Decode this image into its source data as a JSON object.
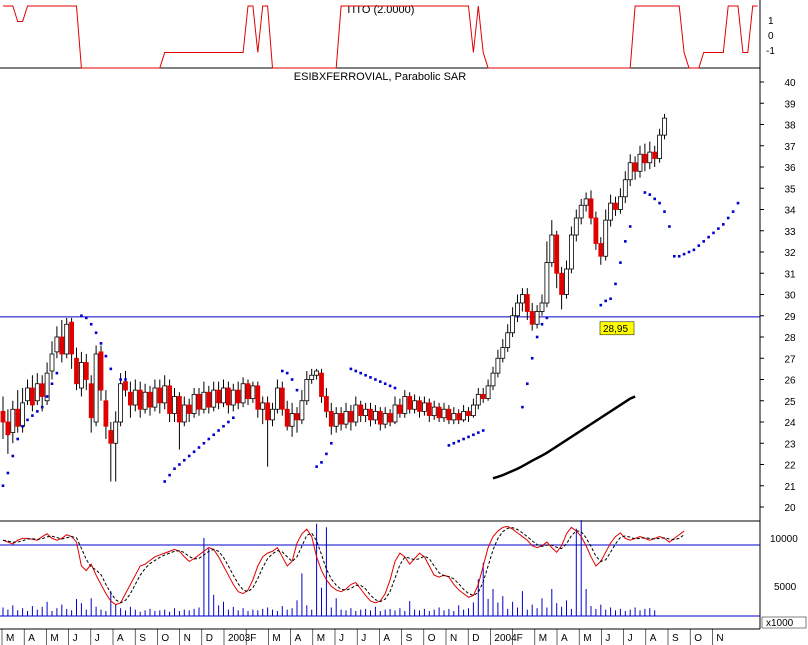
{
  "indicator_panel": {
    "title": "TITO (2.0000)",
    "y_ticks": [
      "1",
      "0",
      "-1"
    ]
  },
  "main_panel": {
    "title": "ESIBXFERROVIAL, Parabolic SAR",
    "y_ticks": [
      "40",
      "39",
      "38",
      "37",
      "36",
      "35",
      "34",
      "33",
      "32",
      "31",
      "30",
      "29",
      "28",
      "27",
      "26",
      "25",
      "24",
      "23",
      "22",
      "21",
      "20"
    ]
  },
  "volume_panel": {
    "y_ticks": [
      "10000",
      "5000"
    ],
    "unit": "x1000"
  },
  "x_axis": {
    "labels": [
      "M",
      "A",
      "M",
      "J",
      "J",
      "A",
      "S",
      "O",
      "N",
      "D",
      "2003",
      "F",
      "M",
      "A",
      "M",
      "J",
      "J",
      "A",
      "S",
      "O",
      "N",
      "D",
      "2004",
      "F",
      "M",
      "A",
      "M",
      "J",
      "J",
      "A",
      "S",
      "O",
      "N"
    ]
  },
  "colors": {
    "up": "#ffffff",
    "down": "#e00000",
    "outline": "#000000",
    "sar": "#0000cc",
    "tito": "#e00000",
    "hline": "#0000cc",
    "ma": "#000000",
    "label_bg": "#ffff00"
  },
  "chart_data": {
    "type": "candlestick",
    "title": "ESIBXFERROVIAL, Parabolic SAR",
    "ylim": [
      20,
      40
    ],
    "resistance": {
      "value": 28.95,
      "label": "28,95"
    },
    "sar_segments": [
      {
        "start": 0,
        "values": [
          21.0,
          21.6,
          22.4,
          23.2,
          23.8,
          24.1,
          24.3,
          24.5,
          24.7,
          25.2,
          25.8,
          26.3
        ]
      },
      {
        "start": 16,
        "values": [
          29.0,
          28.9,
          28.6,
          28.2,
          27.7,
          27.1,
          26.5
        ]
      },
      {
        "start": 24,
        "values": [
          26.0,
          26.0
        ]
      },
      {
        "start": 33,
        "values": [
          21.2,
          21.5,
          21.8,
          22.0,
          22.2,
          22.4,
          22.6,
          22.8,
          23.0,
          23.2,
          23.4,
          23.6,
          23.8,
          24.0,
          24.2
        ]
      },
      {
        "start": 57,
        "values": [
          26.4,
          26.3,
          26.0,
          25.5
        ]
      },
      {
        "start": 64,
        "values": [
          21.9,
          22.1,
          22.5,
          23.0
        ]
      },
      {
        "start": 71,
        "values": [
          26.5,
          26.4,
          26.3,
          26.2,
          26.1,
          26.0,
          25.9,
          25.8,
          25.7,
          25.6
        ]
      },
      {
        "start": 91,
        "values": [
          22.9,
          23.0,
          23.1,
          23.2,
          23.3,
          23.4,
          23.5,
          23.6
        ]
      },
      {
        "start": 106,
        "values": [
          24.7,
          25.8,
          27.0,
          28.0,
          28.6,
          28.9
        ]
      },
      {
        "start": 122,
        "values": [
          29.5,
          29.7,
          29.8,
          30.5,
          31.5,
          32.5,
          33.2
        ]
      },
      {
        "start": 131,
        "values": [
          34.8,
          34.7,
          34.5,
          34.3,
          33.9,
          33.2
        ]
      },
      {
        "start": 137,
        "values": [
          31.8,
          31.8,
          31.9,
          32.0,
          32.1,
          32.3,
          32.5,
          32.7,
          32.9,
          33.1,
          33.3,
          33.6,
          33.9,
          34.3
        ]
      }
    ],
    "ma_line": {
      "start": 100,
      "values": [
        21.35,
        21.42,
        21.5,
        21.6,
        21.7,
        21.8,
        21.92,
        22.05,
        22.18,
        22.3,
        22.42,
        22.55,
        22.7,
        22.85,
        23.0,
        23.15,
        23.3,
        23.45,
        23.6,
        23.75,
        23.9,
        24.05,
        24.2,
        24.35,
        24.5,
        24.65,
        24.8,
        24.95,
        25.1,
        25.2
      ]
    },
    "tito": [
      2,
      2,
      2,
      1,
      1,
      2,
      2,
      2,
      2,
      2,
      2,
      2,
      2,
      2,
      2,
      2,
      -2,
      -2,
      -2,
      -2,
      -2,
      -2,
      -2,
      -2,
      -2,
      -2,
      -2,
      -2,
      -2,
      -2,
      -2,
      -2,
      -2,
      -1,
      -1,
      -1,
      -1,
      -1,
      -1,
      -1,
      -1,
      -1,
      -1,
      -1,
      -1,
      -1,
      -1,
      -1,
      -1,
      -1,
      2,
      2,
      -1,
      2,
      2,
      -2,
      -2,
      -2,
      -2,
      -2,
      -2,
      -2,
      -2,
      -2,
      -2,
      -2,
      -2,
      -2,
      -2,
      2,
      2,
      2,
      2,
      2,
      2,
      2,
      2,
      2,
      2,
      2,
      2,
      2,
      2,
      2,
      2,
      2,
      2,
      2,
      2,
      2,
      2,
      2,
      2,
      2,
      2,
      2,
      -1,
      2,
      -1,
      -2,
      -2,
      -2,
      -2,
      -2,
      -2,
      -2,
      -2,
      -2,
      -2,
      -2,
      -2,
      -2,
      -2,
      -2,
      -2,
      -2,
      -2,
      -2,
      -2,
      -2,
      -2,
      -2,
      -2,
      -2,
      -2,
      -2,
      -2,
      -2,
      -2,
      2,
      2,
      2,
      2,
      2,
      2,
      2,
      2,
      2,
      2,
      -1,
      -2,
      -2,
      -2,
      -1,
      -1,
      -1,
      -1,
      -1,
      2,
      2,
      2,
      -1,
      -1,
      2,
      2
    ],
    "oscillator": [
      0.78,
      0.76,
      0.74,
      0.78,
      0.8,
      0.8,
      0.79,
      0.78,
      0.82,
      0.85,
      0.8,
      0.78,
      0.8,
      0.84,
      0.82,
      0.76,
      0.5,
      0.45,
      0.52,
      0.4,
      0.3,
      0.2,
      0.12,
      0.08,
      0.1,
      0.2,
      0.3,
      0.4,
      0.5,
      0.52,
      0.56,
      0.6,
      0.62,
      0.64,
      0.66,
      0.68,
      0.66,
      0.6,
      0.55,
      0.58,
      0.62,
      0.66,
      0.7,
      0.68,
      0.6,
      0.5,
      0.4,
      0.3,
      0.22,
      0.2,
      0.24,
      0.35,
      0.5,
      0.6,
      0.64,
      0.66,
      0.7,
      0.6,
      0.5,
      0.55,
      0.75,
      0.85,
      0.9,
      0.82,
      0.6,
      0.45,
      0.35,
      0.28,
      0.24,
      0.22,
      0.25,
      0.3,
      0.32,
      0.25,
      0.18,
      0.12,
      0.1,
      0.12,
      0.2,
      0.35,
      0.55,
      0.64,
      0.6,
      0.52,
      0.58,
      0.64,
      0.6,
      0.5,
      0.4,
      0.38,
      0.4,
      0.38,
      0.3,
      0.24,
      0.2,
      0.16,
      0.18,
      0.3,
      0.5,
      0.7,
      0.82,
      0.88,
      0.92,
      0.93,
      0.9,
      0.86,
      0.82,
      0.78,
      0.72,
      0.7,
      0.72,
      0.76,
      0.7,
      0.65,
      0.72,
      0.85,
      0.92,
      0.88,
      0.82,
      0.72,
      0.6,
      0.5,
      0.55,
      0.65,
      0.75,
      0.82,
      0.86,
      0.8,
      0.78,
      0.8,
      0.82,
      0.8,
      0.78,
      0.8,
      0.82,
      0.8,
      0.76,
      0.8,
      0.84,
      0.88
    ],
    "volume": [
      1200,
      900,
      1500,
      800,
      1100,
      700,
      1400,
      900,
      1300,
      2000,
      700,
      1100,
      1600,
      1000,
      800,
      2400,
      1800,
      900,
      2500,
      1300,
      900,
      700,
      3500,
      1600,
      1100,
      800,
      1300,
      900,
      600,
      800,
      1000,
      700,
      800,
      900,
      600,
      1100,
      700,
      900,
      800,
      1000,
      1200,
      11000,
      9500,
      3000,
      1500,
      2000,
      900,
      1300,
      800,
      1100,
      700,
      900,
      800,
      1000,
      1200,
      900,
      700,
      1400,
      900,
      1100,
      2200,
      6000,
      1500,
      900,
      13000,
      4000,
      12500,
      1200,
      2500,
      900,
      800,
      1100,
      700,
      900,
      1000,
      800,
      1300,
      700,
      900,
      1000,
      800,
      1100,
      700,
      2100,
      900,
      800,
      1000,
      700,
      900,
      1200,
      800,
      1000,
      700,
      1500,
      900,
      1100,
      1900,
      5200,
      7500,
      2400,
      3800,
      1900,
      2800,
      1000,
      2000,
      1200,
      3500,
      900,
      1600,
      1100,
      2500,
      1200,
      3800,
      1800,
      1300,
      2200,
      1000,
      12300,
      13500,
      3800,
      1400,
      1000,
      1600,
      900,
      1200,
      800,
      1000,
      700,
      900,
      1200,
      800,
      1000,
      1100,
      800
    ],
    "candles": [
      [
        24.5,
        24.0,
        25.2,
        23.2
      ],
      [
        24.0,
        23.4,
        24.6,
        22.5
      ],
      [
        23.5,
        24.6,
        25.0,
        23.0
      ],
      [
        24.6,
        23.8,
        25.5,
        23.5
      ],
      [
        23.8,
        24.9,
        25.6,
        23.5
      ],
      [
        25.0,
        25.6,
        26.0,
        24.8
      ],
      [
        25.6,
        24.8,
        26.2,
        24.5
      ],
      [
        25.0,
        25.8,
        26.3,
        24.8
      ],
      [
        25.8,
        25.2,
        26.2,
        24.5
      ],
      [
        25.0,
        26.3,
        26.8,
        24.8
      ],
      [
        26.4,
        27.2,
        27.8,
        26.0
      ],
      [
        27.3,
        28.0,
        28.5,
        27.0
      ],
      [
        28.0,
        27.2,
        28.8,
        26.8
      ],
      [
        27.2,
        28.6,
        28.9,
        27.0
      ],
      [
        28.7,
        27.2,
        28.9,
        26.5
      ],
      [
        27.0,
        25.8,
        27.5,
        25.5
      ],
      [
        25.6,
        26.8,
        27.3,
        25.2
      ],
      [
        26.8,
        26.0,
        27.2,
        25.5
      ],
      [
        25.8,
        24.2,
        26.2,
        23.5
      ],
      [
        24.0,
        27.2,
        27.6,
        23.8
      ],
      [
        27.3,
        25.5,
        27.6,
        25.0
      ],
      [
        25.0,
        23.8,
        25.5,
        23.2
      ],
      [
        23.6,
        23.0,
        24.0,
        21.2
      ],
      [
        23.0,
        24.0,
        24.5,
        21.2
      ],
      [
        24.0,
        25.8,
        26.3,
        23.8
      ],
      [
        25.9,
        25.5,
        26.4,
        25.2
      ],
      [
        25.4,
        24.8,
        25.9,
        24.2
      ],
      [
        24.8,
        25.5,
        26.0,
        24.5
      ],
      [
        25.5,
        24.6,
        25.9,
        24.2
      ],
      [
        24.6,
        25.4,
        25.8,
        24.4
      ],
      [
        25.4,
        24.7,
        25.7,
        24.3
      ],
      [
        24.7,
        25.6,
        26.0,
        24.5
      ],
      [
        25.6,
        24.9,
        26.0,
        24.4
      ],
      [
        24.9,
        25.7,
        26.2,
        24.6
      ],
      [
        25.7,
        24.4,
        26.0,
        24.0
      ],
      [
        24.4,
        25.2,
        25.6,
        24.0
      ],
      [
        25.2,
        24.0,
        25.4,
        22.7
      ],
      [
        24.0,
        24.8,
        25.2,
        23.8
      ],
      [
        24.8,
        24.4,
        25.1,
        24.0
      ],
      [
        24.4,
        25.3,
        25.6,
        24.2
      ],
      [
        25.3,
        24.6,
        25.6,
        24.3
      ],
      [
        24.6,
        25.4,
        25.9,
        24.4
      ],
      [
        25.4,
        24.7,
        25.7,
        24.4
      ],
      [
        24.7,
        25.5,
        25.9,
        24.5
      ],
      [
        25.5,
        24.9,
        25.9,
        24.6
      ],
      [
        24.9,
        25.6,
        26.0,
        24.7
      ],
      [
        25.6,
        24.8,
        25.9,
        24.4
      ],
      [
        24.8,
        25.5,
        25.8,
        24.5
      ],
      [
        25.5,
        24.9,
        25.9,
        24.6
      ],
      [
        24.9,
        25.8,
        26.1,
        24.7
      ],
      [
        25.8,
        25.1,
        26.0,
        24.8
      ],
      [
        25.1,
        25.7,
        25.9,
        24.9
      ],
      [
        25.7,
        24.6,
        25.9,
        24.2
      ],
      [
        24.6,
        24.9,
        25.2,
        23.9
      ],
      [
        24.9,
        24.1,
        25.2,
        21.9
      ],
      [
        24.1,
        24.6,
        24.9,
        23.8
      ],
      [
        24.6,
        25.6,
        26.0,
        24.4
      ],
      [
        25.6,
        24.6,
        25.9,
        24.3
      ],
      [
        24.6,
        23.8,
        25.0,
        23.6
      ],
      [
        23.8,
        24.4,
        24.9,
        23.3
      ],
      [
        24.4,
        24.1,
        24.7,
        23.5
      ],
      [
        24.1,
        25.0,
        25.5,
        23.9
      ],
      [
        25.0,
        26.0,
        26.4,
        24.8
      ],
      [
        26.0,
        26.2,
        26.5,
        25.8
      ],
      [
        26.2,
        26.4,
        26.5,
        26.0
      ],
      [
        26.3,
        25.2,
        26.5,
        24.9
      ],
      [
        25.2,
        24.5,
        25.6,
        24.2
      ],
      [
        24.5,
        23.8,
        24.9,
        23.4
      ],
      [
        23.8,
        24.4,
        24.7,
        23.5
      ],
      [
        24.4,
        23.9,
        24.7,
        23.6
      ],
      [
        23.9,
        24.5,
        24.9,
        23.7
      ],
      [
        24.5,
        24.0,
        24.8,
        23.6
      ],
      [
        24.0,
        24.8,
        25.2,
        23.8
      ],
      [
        24.8,
        24.3,
        25.0,
        24.0
      ],
      [
        24.3,
        24.6,
        24.9,
        24.0
      ],
      [
        24.6,
        24.1,
        24.9,
        23.8
      ],
      [
        24.1,
        24.5,
        24.8,
        23.9
      ],
      [
        24.5,
        23.9,
        24.7,
        23.6
      ],
      [
        23.9,
        24.4,
        24.7,
        23.7
      ],
      [
        24.4,
        24.0,
        24.6,
        23.8
      ],
      [
        24.0,
        24.8,
        25.2,
        23.9
      ],
      [
        24.8,
        24.4,
        25.1,
        24.2
      ],
      [
        24.4,
        25.2,
        25.5,
        24.2
      ],
      [
        25.2,
        24.6,
        25.4,
        24.4
      ],
      [
        24.6,
        25.0,
        25.3,
        24.4
      ],
      [
        25.0,
        24.5,
        25.2,
        24.2
      ],
      [
        24.5,
        24.9,
        25.2,
        24.3
      ],
      [
        24.9,
        24.3,
        25.1,
        24.0
      ],
      [
        24.3,
        24.7,
        25.0,
        24.1
      ],
      [
        24.7,
        24.2,
        24.9,
        24.0
      ],
      [
        24.2,
        24.6,
        24.9,
        24.0
      ],
      [
        24.6,
        24.1,
        24.8,
        23.9
      ],
      [
        24.1,
        24.4,
        24.7,
        23.9
      ],
      [
        24.4,
        24.1,
        24.6,
        23.9
      ],
      [
        24.1,
        24.5,
        24.8,
        24.0
      ],
      [
        24.5,
        24.3,
        24.7,
        24.0
      ],
      [
        24.3,
        24.8,
        25.1,
        24.2
      ],
      [
        24.8,
        25.3,
        25.6,
        24.6
      ],
      [
        25.3,
        25.1,
        25.6,
        24.9
      ],
      [
        25.1,
        25.7,
        26.0,
        25.0
      ],
      [
        25.7,
        26.3,
        26.6,
        25.5
      ],
      [
        26.3,
        27.0,
        27.4,
        26.1
      ],
      [
        27.0,
        27.5,
        27.9,
        26.8
      ],
      [
        27.5,
        28.2,
        28.6,
        27.3
      ],
      [
        28.2,
        29.0,
        29.4,
        28.0
      ],
      [
        29.0,
        29.6,
        30.0,
        28.7
      ],
      [
        29.6,
        30.0,
        30.3,
        29.2
      ],
      [
        30.0,
        29.2,
        30.3,
        28.8
      ],
      [
        29.2,
        28.6,
        29.6,
        28.3
      ],
      [
        28.6,
        29.2,
        29.5,
        28.4
      ],
      [
        29.2,
        29.6,
        30.0,
        29.0
      ],
      [
        29.6,
        31.5,
        32.5,
        29.4
      ],
      [
        31.5,
        32.8,
        33.5,
        31.3
      ],
      [
        32.8,
        31.0,
        33.0,
        30.3
      ],
      [
        31.0,
        30.0,
        31.3,
        29.3
      ],
      [
        30.0,
        31.2,
        31.6,
        29.8
      ],
      [
        31.2,
        32.8,
        33.2,
        31.0
      ],
      [
        32.8,
        33.6,
        34.0,
        32.5
      ],
      [
        33.6,
        34.2,
        34.5,
        33.3
      ],
      [
        34.2,
        34.5,
        34.8,
        33.9
      ],
      [
        34.5,
        33.6,
        34.9,
        33.3
      ],
      [
        33.6,
        32.4,
        33.9,
        32.1
      ],
      [
        32.4,
        31.8,
        32.7,
        31.4
      ],
      [
        31.8,
        33.5,
        34.0,
        31.6
      ],
      [
        33.5,
        34.3,
        34.7,
        33.2
      ],
      [
        34.3,
        34.0,
        34.6,
        33.7
      ],
      [
        34.0,
        34.6,
        35.0,
        33.8
      ],
      [
        34.6,
        35.4,
        35.8,
        34.3
      ],
      [
        35.4,
        36.2,
        36.6,
        35.1
      ],
      [
        36.2,
        35.8,
        36.5,
        35.4
      ],
      [
        35.8,
        36.6,
        37.0,
        35.5
      ],
      [
        36.6,
        36.2,
        37.1,
        35.8
      ],
      [
        36.2,
        36.7,
        37.2,
        35.9
      ],
      [
        36.7,
        36.4,
        37.0,
        36.0
      ],
      [
        36.4,
        37.5,
        37.8,
        36.2
      ],
      [
        37.5,
        38.3,
        38.5,
        37.3
      ]
    ]
  }
}
